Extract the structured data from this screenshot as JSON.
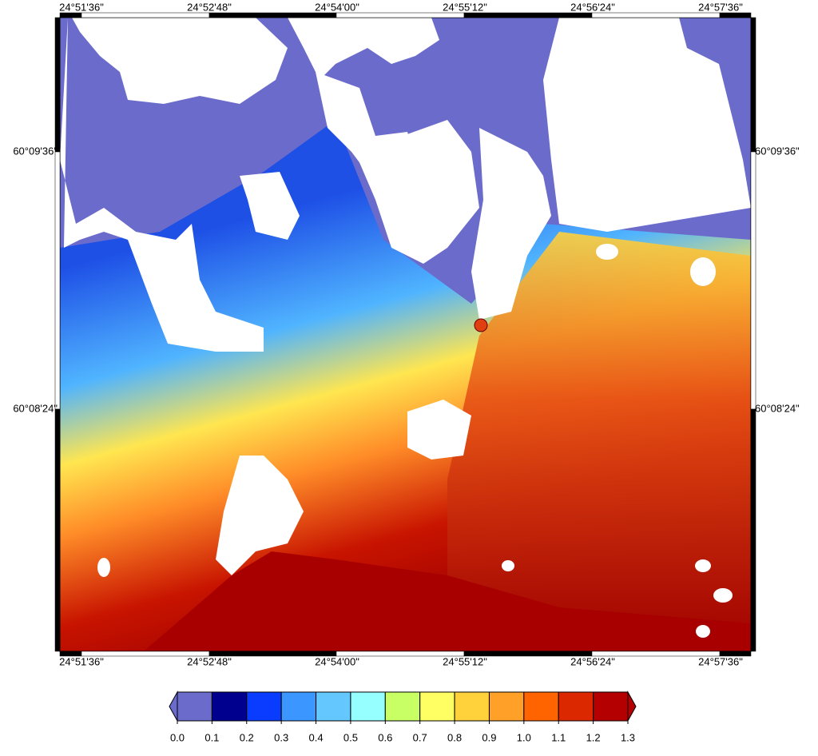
{
  "map": {
    "lon_labels": [
      "24°51'36\"",
      "24°52'48\"",
      "24°54'00\"",
      "24°55'12\"",
      "24°56'24\"",
      "24°57'36\""
    ],
    "lat_labels": [
      "60°09'36\"",
      "60°08'24\""
    ],
    "colorbar": {
      "labels": [
        "0.0",
        "0.1",
        "0.2",
        "0.3",
        "0.4",
        "0.5",
        "0.6",
        "0.7",
        "0.8",
        "0.9",
        "1.0",
        "1.1",
        "1.2",
        "1.3"
      ],
      "colors": [
        "#6b6bcc",
        "#00008f",
        "#0a3cff",
        "#3c96ff",
        "#64c8ff",
        "#96ffff",
        "#c8ff64",
        "#ffff64",
        "#ffd23c",
        "#ffa028",
        "#ff6400",
        "#dc2800",
        "#b40000"
      ]
    }
  }
}
